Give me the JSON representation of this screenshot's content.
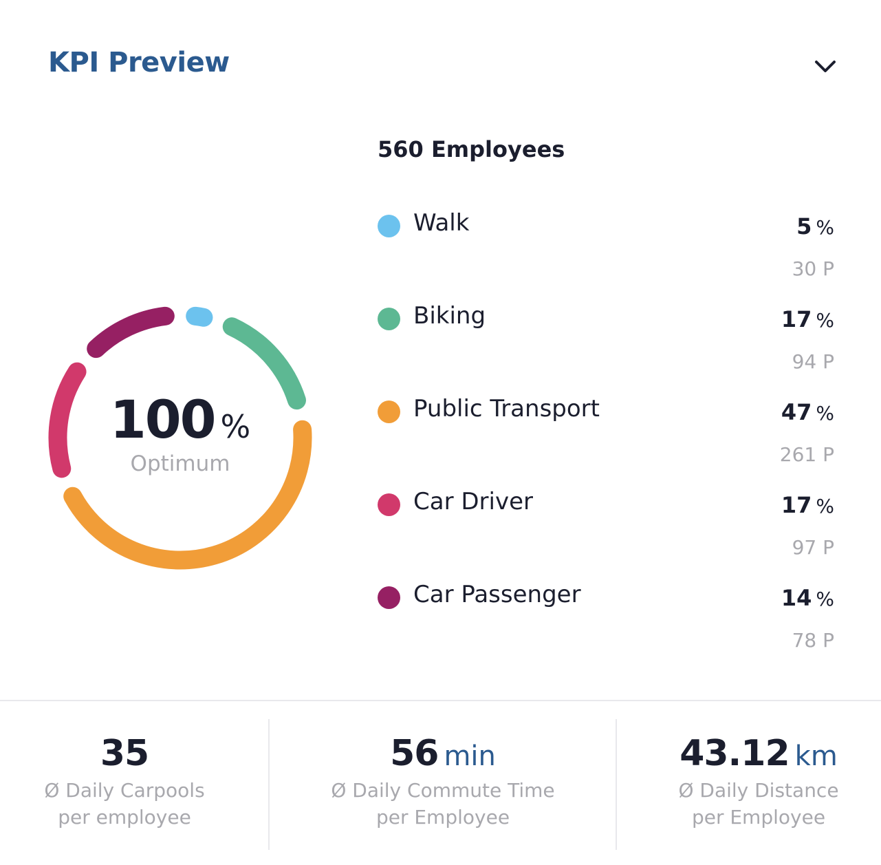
{
  "header": {
    "title": "KPI Preview"
  },
  "icons": {
    "collapse": "chevron-down-icon"
  },
  "colors": {
    "title": "#2b5a8f",
    "walk": "#6cc2ee",
    "biking": "#5db893",
    "public_transport": "#f19d38",
    "car_driver": "#d1396b",
    "car_passenger": "#962063"
  },
  "donut": {
    "value": "100",
    "unit": "%",
    "label": "Optimum"
  },
  "summary": {
    "employees": "560 Employees"
  },
  "modes": [
    {
      "label": "Walk",
      "percent": "5",
      "percent_sign": "%",
      "count": "30 P",
      "color": "#6cc2ee",
      "share": 5
    },
    {
      "label": "Biking",
      "percent": "17",
      "percent_sign": "%",
      "count": "94 P",
      "color": "#5db893",
      "share": 17
    },
    {
      "label": "Public Transport",
      "percent": "47",
      "percent_sign": "%",
      "count": "261 P",
      "color": "#f19d38",
      "share": 47
    },
    {
      "label": "Car Driver",
      "percent": "17",
      "percent_sign": "%",
      "count": "97 P",
      "color": "#d1396b",
      "share": 17
    },
    {
      "label": "Car Passenger",
      "percent": "14",
      "percent_sign": "%",
      "count": "78 P",
      "color": "#962063",
      "share": 14
    }
  ],
  "stats": [
    {
      "value": "35",
      "unit": "",
      "label_line1": "Ø Daily Carpools",
      "label_line2": "per employee"
    },
    {
      "value": "56",
      "unit": "min",
      "label_line1": "Ø Daily Commute Time",
      "label_line2": "per Employee"
    },
    {
      "value": "43.12",
      "unit": "km",
      "label_line1": "Ø Daily Distance",
      "label_line2": "per Employee"
    }
  ]
}
